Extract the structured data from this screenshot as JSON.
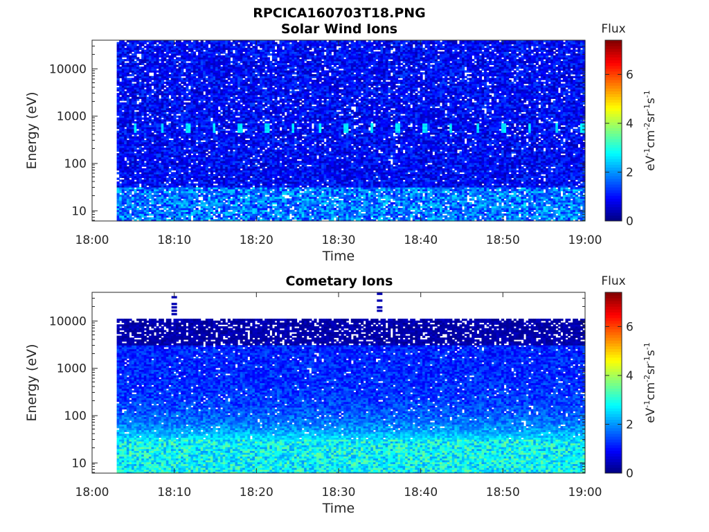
{
  "figure": {
    "title": "RPCICA160703T18.PNG"
  },
  "chart_data": [
    {
      "type": "heatmap",
      "title": "Solar Wind Ions",
      "xlabel": "Time",
      "ylabel": "Energy (eV)",
      "x_range": [
        "18:00",
        "19:00"
      ],
      "x_ticks": [
        "18:00",
        "18:10",
        "18:20",
        "18:30",
        "18:40",
        "18:50",
        "19:00"
      ],
      "y_scale": "log",
      "y_range": [
        5.8,
        40000
      ],
      "y_ticks": [
        10,
        100,
        1000,
        10000
      ],
      "y_tick_labels": [
        "10",
        "100",
        "1000",
        "10000"
      ],
      "data_time_range": [
        "18:03",
        "19:00"
      ],
      "colorbar": {
        "title": "Flux",
        "label": "eV-1cm-2sr-1s-1",
        "label_parts": [
          [
            "eV",
            "-1"
          ],
          [
            "cm",
            "-2"
          ],
          [
            "sr",
            "-1"
          ],
          [
            "s",
            "-1"
          ]
        ],
        "range": [
          0,
          7.4
        ],
        "ticks": [
          0,
          2,
          4,
          6
        ],
        "colormap": "jet"
      },
      "features": {
        "background_flux": "0.3-1.5 above 30 eV",
        "low_energy_flux": "1-2.5 below 30 eV",
        "periodic_spots_energy_eV": 550,
        "periodic_spots_flux": 2.6,
        "periodic_spots_period_min": 3.2
      }
    },
    {
      "type": "heatmap",
      "title": "Cometary Ions",
      "xlabel": "Time",
      "ylabel": "Energy (eV)",
      "x_range": [
        "18:00",
        "19:00"
      ],
      "x_ticks": [
        "18:00",
        "18:10",
        "18:20",
        "18:30",
        "18:40",
        "18:50",
        "19:00"
      ],
      "y_scale": "log",
      "y_range": [
        5.8,
        40000
      ],
      "y_ticks": [
        10,
        100,
        1000,
        10000
      ],
      "y_tick_labels": [
        "10",
        "100",
        "1000",
        "10000"
      ],
      "data_time_range": [
        "18:03",
        "19:00"
      ],
      "data_energy_max_eV": 11000,
      "colorbar": {
        "title": "Flux",
        "label": "eV-1cm-2sr-1s-1",
        "label_parts": [
          [
            "eV",
            "-1"
          ],
          [
            "cm",
            "-2"
          ],
          [
            "sr",
            "-1"
          ],
          [
            "s",
            "-1"
          ]
        ],
        "range": [
          0,
          7.4
        ],
        "ticks": [
          0,
          2,
          4,
          6
        ],
        "colormap": "jet"
      },
      "features": {
        "high_energy_flux": "0.1-0.5 above 3000 eV",
        "mid_energy_flux": "0.7-1.7 between 30 and 3000 eV",
        "low_energy_flux": "2-3.5 below 30 eV",
        "isolated_columns_time": [
          "18:10",
          "18:35"
        ]
      }
    }
  ]
}
